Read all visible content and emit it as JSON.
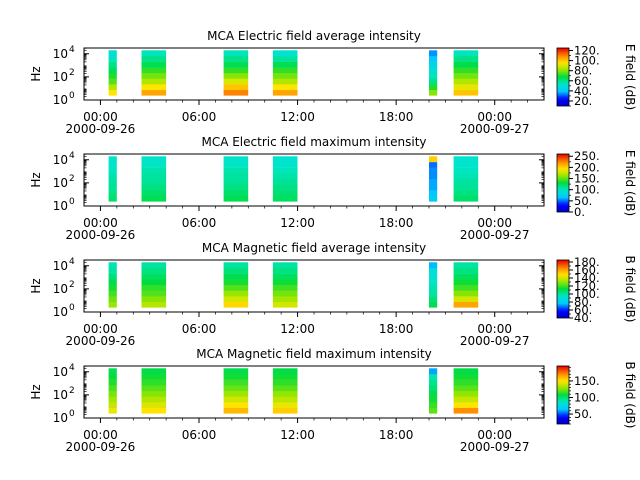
{
  "chart_data": [
    {
      "type": "heatmap",
      "title": "MCA  Electric field average intensity",
      "ylabel": "Hz",
      "colorbar_label": "E field (dB)",
      "colorbar_ticks": [
        "20.",
        "40.",
        "60.",
        "80.",
        "100.",
        "120."
      ],
      "clim": [
        10,
        125
      ],
      "ylim_exp": [
        0,
        4.5
      ],
      "y_tick_exps": [
        0,
        2,
        4
      ],
      "x_tick_labels": [
        "00:00",
        "06:00",
        "12:00",
        "18:00",
        "00:00"
      ],
      "x_date_labels": [
        "2000-09-26",
        "2000-09-27"
      ],
      "xlim_hours": [
        -1,
        27
      ],
      "segments": [
        {
          "start": 0.5,
          "end": 1.0,
          "levels": [
            95,
            85,
            75,
            70,
            65,
            60,
            55,
            50
          ]
        },
        {
          "start": 2.5,
          "end": 4.0,
          "levels": [
            105,
            95,
            85,
            78,
            72,
            65,
            60,
            55
          ]
        },
        {
          "start": 7.5,
          "end": 9.0,
          "levels": [
            110,
            100,
            90,
            80,
            72,
            65,
            60,
            55
          ]
        },
        {
          "start": 10.5,
          "end": 12.0,
          "levels": [
            105,
            95,
            85,
            78,
            72,
            65,
            58,
            52
          ]
        },
        {
          "start": 20.0,
          "end": 20.5,
          "levels": [
            80,
            70,
            60,
            55,
            50,
            45,
            40,
            35
          ]
        },
        {
          "start": 21.5,
          "end": 23.0,
          "levels": [
            100,
            92,
            85,
            78,
            72,
            66,
            60,
            55
          ]
        }
      ],
      "freq_range_exp": [
        0.4,
        4.3
      ]
    },
    {
      "type": "heatmap",
      "title": "MCA  Electric field maximum intensity",
      "ylabel": "Hz",
      "colorbar_label": "E field (dB)",
      "colorbar_ticks": [
        "0.",
        "50.",
        "100.",
        "150.",
        "200.",
        "250."
      ],
      "clim": [
        0,
        260
      ],
      "ylim_exp": [
        0,
        4.5
      ],
      "y_tick_exps": [
        0,
        2,
        4
      ],
      "x_tick_labels": [
        "00:00",
        "06:00",
        "12:00",
        "18:00",
        "00:00"
      ],
      "x_date_labels": [
        "2000-09-26",
        "2000-09-27"
      ],
      "xlim_hours": [
        -1,
        27
      ],
      "segments": [
        {
          "start": 0.5,
          "end": 1.0,
          "levels": [
            120,
            115,
            110,
            108,
            105,
            100,
            98,
            95
          ]
        },
        {
          "start": 2.5,
          "end": 4.0,
          "levels": [
            125,
            120,
            115,
            110,
            108,
            105,
            100,
            98
          ]
        },
        {
          "start": 7.5,
          "end": 9.0,
          "levels": [
            125,
            120,
            115,
            110,
            108,
            105,
            100,
            98
          ]
        },
        {
          "start": 10.5,
          "end": 12.0,
          "levels": [
            122,
            118,
            114,
            110,
            106,
            102,
            98,
            95
          ]
        },
        {
          "start": 20.0,
          "end": 20.5,
          "levels": [
            70,
            65,
            60,
            60,
            55,
            55,
            50,
            200
          ]
        },
        {
          "start": 21.5,
          "end": 23.0,
          "levels": [
            120,
            115,
            110,
            108,
            104,
            100,
            98,
            95
          ]
        }
      ],
      "freq_range_exp": [
        0.4,
        4.3
      ]
    },
    {
      "type": "heatmap",
      "title": "MCA  Magnetic field average intensity",
      "ylabel": "Hz",
      "colorbar_label": "B field (dB)",
      "colorbar_ticks": [
        "40.",
        "60.",
        "80.",
        "100.",
        "120.",
        "140.",
        "160.",
        "180."
      ],
      "clim": [
        40,
        185
      ],
      "ylim_exp": [
        0,
        4.5
      ],
      "y_tick_exps": [
        0,
        2,
        4
      ],
      "x_tick_labels": [
        "00:00",
        "06:00",
        "12:00",
        "18:00",
        "00:00"
      ],
      "x_date_labels": [
        "2000-09-26",
        "2000-09-27"
      ],
      "xlim_hours": [
        -1,
        27
      ],
      "segments": [
        {
          "start": 0.5,
          "end": 1.0,
          "levels": [
            130,
            125,
            120,
            115,
            110,
            105,
            100,
            98
          ]
        },
        {
          "start": 2.5,
          "end": 4.0,
          "levels": [
            135,
            128,
            122,
            118,
            112,
            108,
            104,
            100
          ]
        },
        {
          "start": 7.5,
          "end": 9.0,
          "levels": [
            150,
            140,
            130,
            122,
            115,
            110,
            105,
            100
          ]
        },
        {
          "start": 10.5,
          "end": 12.0,
          "levels": [
            140,
            132,
            126,
            120,
            114,
            108,
            104,
            100
          ]
        },
        {
          "start": 20.0,
          "end": 20.5,
          "levels": [
            110,
            105,
            100,
            98,
            95,
            92,
            90,
            75
          ]
        },
        {
          "start": 21.5,
          "end": 23.0,
          "levels": [
            160,
            140,
            128,
            120,
            114,
            108,
            104,
            100
          ]
        }
      ],
      "freq_range_exp": [
        0.4,
        4.3
      ]
    },
    {
      "type": "heatmap",
      "title": "MCA  Magnetic field maximum intensity",
      "ylabel": "Hz",
      "colorbar_label": "B field (dB)",
      "colorbar_ticks": [
        "50.",
        "100.",
        "150."
      ],
      "clim": [
        20,
        195
      ],
      "ylim_exp": [
        0,
        4.5
      ],
      "y_tick_exps": [
        0,
        2,
        4
      ],
      "x_tick_labels": [
        "00:00",
        "06:00",
        "12:00",
        "18:00",
        "00:00"
      ],
      "x_date_labels": [
        "2000-09-26",
        "2000-09-27"
      ],
      "xlim_hours": [
        -1,
        27
      ],
      "segments": [
        {
          "start": 0.5,
          "end": 1.0,
          "levels": [
            145,
            138,
            130,
            124,
            118,
            112,
            108,
            104
          ]
        },
        {
          "start": 2.5,
          "end": 4.0,
          "levels": [
            150,
            142,
            134,
            126,
            120,
            114,
            110,
            106
          ]
        },
        {
          "start": 7.5,
          "end": 9.0,
          "levels": [
            160,
            150,
            140,
            130,
            122,
            116,
            110,
            105
          ]
        },
        {
          "start": 10.5,
          "end": 12.0,
          "levels": [
            155,
            145,
            136,
            128,
            120,
            114,
            110,
            106
          ]
        },
        {
          "start": 20.0,
          "end": 20.5,
          "levels": [
            120,
            115,
            110,
            105,
            100,
            95,
            90,
            60
          ]
        },
        {
          "start": 21.5,
          "end": 23.0,
          "levels": [
            170,
            150,
            138,
            128,
            120,
            114,
            110,
            106
          ]
        }
      ],
      "freq_range_exp": [
        0.4,
        4.3
      ]
    }
  ]
}
